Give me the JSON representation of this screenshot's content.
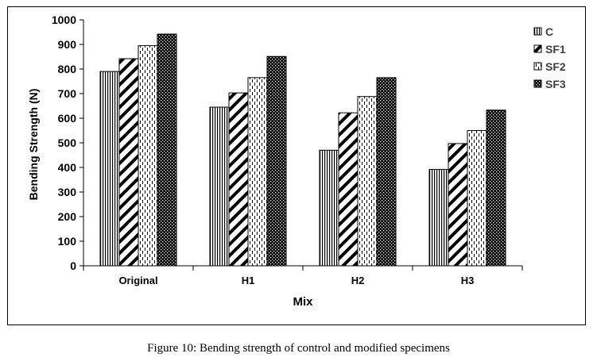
{
  "caption": "Figure 10:  Bending strength of control and modified specimens",
  "chart_data": {
    "type": "bar",
    "title": "",
    "xlabel": "Mix",
    "ylabel": "Bending Strength (N)",
    "categories": [
      "Original",
      "H1",
      "H2",
      "H3"
    ],
    "ylim": [
      0,
      1000
    ],
    "yticks": [
      0,
      100,
      200,
      300,
      400,
      500,
      600,
      700,
      800,
      900,
      1000
    ],
    "grid": false,
    "legend_position": "right",
    "series": [
      {
        "name": "C",
        "pattern": "vertical-lines",
        "values": [
          790,
          645,
          470,
          392
        ]
      },
      {
        "name": "SF1",
        "pattern": "diagonal-wide",
        "values": [
          842,
          703,
          622,
          497
        ]
      },
      {
        "name": "SF2",
        "pattern": "dashed-vertical",
        "values": [
          895,
          765,
          688,
          550
        ]
      },
      {
        "name": "SF3",
        "pattern": "dotted-dense",
        "values": [
          942,
          851,
          765,
          633
        ]
      }
    ]
  }
}
